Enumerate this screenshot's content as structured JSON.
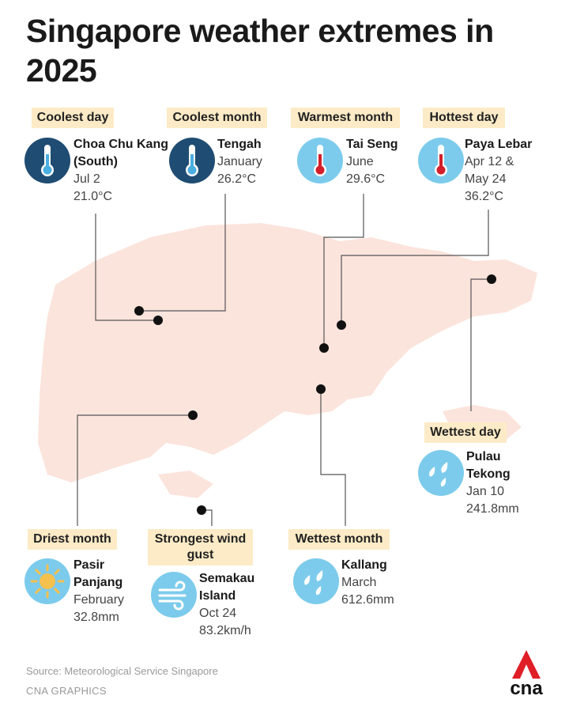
{
  "title": "Singapore weather extremes in 2025",
  "cards": [
    {
      "label": "Coolest day",
      "place": "Choa Chu Kang (South)",
      "details": [
        "Jul 2",
        "21.0°C"
      ]
    },
    {
      "label": "Coolest month",
      "place": "Tengah",
      "details": [
        "January",
        "26.2°C"
      ]
    },
    {
      "label": "Warmest month",
      "place": "Tai Seng",
      "details": [
        "June",
        "29.6°C"
      ]
    },
    {
      "label": "Hottest day",
      "place": "Paya Lebar",
      "details": [
        "Apr 12 &",
        "May 24",
        "36.2°C"
      ]
    },
    {
      "label": "Wettest day",
      "place": "Pulau Tekong",
      "details": [
        "Jan 10",
        "241.8mm"
      ]
    },
    {
      "label": "Driest month",
      "place": "Pasir Panjang",
      "details": [
        "February",
        "32.8mm"
      ]
    },
    {
      "label": "Strongest wind gust",
      "place": "Semakau Island",
      "details": [
        "Oct 24",
        "83.2km/h"
      ]
    },
    {
      "label": "Wettest month",
      "place": "Kallang",
      "details": [
        "March",
        "612.6mm"
      ]
    }
  ],
  "source": "Source: Meteorological Service Singapore",
  "credit": "CNA GRAPHICS",
  "logo": "cna"
}
